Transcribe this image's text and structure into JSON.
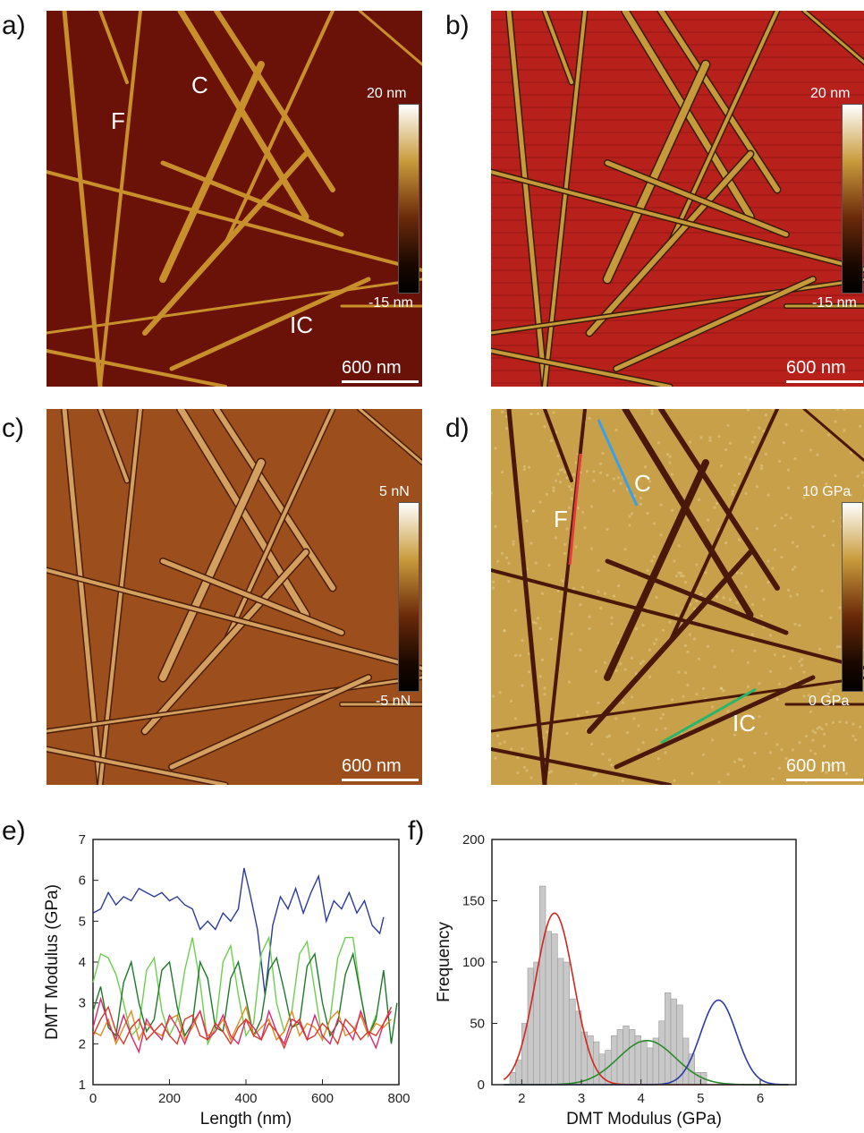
{
  "panels": {
    "a": {
      "letter": "a)",
      "scale": "600 nm",
      "cmax": "20 nm",
      "cmin": "-15 nm",
      "labels": {
        "F": "F",
        "C": "C",
        "IC": "IC"
      }
    },
    "b": {
      "letter": "b)",
      "scale": "600 nm",
      "cmax": "20 nm",
      "cmin": "-15 nm"
    },
    "c": {
      "letter": "c)",
      "scale": "600 nm",
      "cmax": "5 nN",
      "cmin": "-5 nN"
    },
    "d": {
      "letter": "d)",
      "scale": "600 nm",
      "cmax": "10 GPa",
      "cmin": "0 GPa",
      "labels": {
        "F": "F",
        "C": "C",
        "IC": "IC"
      }
    },
    "e": {
      "letter": "e)"
    },
    "f": {
      "letter": "f)"
    }
  },
  "colors": {
    "a_bg": "#6b1208",
    "a_fiber": "#c8902a",
    "b_bg": "#b8201c",
    "b_fiber": "#c49a3a",
    "c_bg": "#9c4e1c",
    "c_fiber": "#d4a060",
    "d_bg": "#c9a04a",
    "d_fiber": "#4a1808",
    "line_F": "#e33a3a",
    "line_C": "#3aa0e6",
    "line_IC": "#29b56a"
  },
  "chart_data": [
    {
      "type": "line",
      "xlabel": "Length (nm)",
      "ylabel": "DMT Modulus (GPa)",
      "xlim": [
        0,
        800
      ],
      "ylim": [
        1,
        7
      ],
      "xticks": [
        0,
        200,
        400,
        600,
        800
      ],
      "yticks": [
        1,
        2,
        3,
        4,
        5,
        6,
        7
      ],
      "series": [
        {
          "color": "#2b3a9e",
          "x": [
            0,
            20,
            40,
            60,
            80,
            100,
            120,
            140,
            160,
            180,
            200,
            220,
            240,
            260,
            280,
            300,
            320,
            340,
            360,
            380,
            395,
            410,
            430,
            450,
            470,
            490,
            510,
            530,
            550,
            570,
            590,
            610,
            630,
            650,
            670,
            690,
            710,
            730,
            750,
            760
          ],
          "y": [
            5.2,
            5.3,
            5.7,
            5.4,
            5.6,
            5.5,
            5.8,
            5.7,
            5.6,
            5.7,
            5.5,
            5.6,
            5.4,
            5.3,
            4.8,
            5.0,
            4.8,
            5.2,
            5.0,
            5.3,
            6.3,
            5.7,
            4.8,
            3.2,
            4.9,
            5.6,
            5.3,
            5.8,
            5.2,
            5.7,
            6.1,
            5.0,
            5.5,
            5.3,
            5.7,
            5.2,
            5.5,
            4.9,
            4.7,
            5.1
          ]
        },
        {
          "color": "#6ccf4c",
          "x": [
            0,
            20,
            40,
            60,
            80,
            100,
            120,
            140,
            160,
            180,
            200,
            220,
            240,
            260,
            280,
            300,
            320,
            340,
            360,
            380,
            400,
            420,
            440,
            460,
            480,
            500,
            520,
            540,
            560,
            580,
            600,
            620,
            640,
            660,
            680,
            700,
            720,
            740
          ],
          "y": [
            3.5,
            4.2,
            4.1,
            3.7,
            3.0,
            2.2,
            2.4,
            3.8,
            4.1,
            2.8,
            2.2,
            2.6,
            3.8,
            4.6,
            3.5,
            2.0,
            2.4,
            4.0,
            4.4,
            3.2,
            2.2,
            2.5,
            4.2,
            4.6,
            3.0,
            2.3,
            2.8,
            4.2,
            4.5,
            3.3,
            2.1,
            2.6,
            4.1,
            4.6,
            4.6,
            3.2,
            2.2,
            2.7
          ]
        },
        {
          "color": "#1e7a2a",
          "x": [
            0,
            20,
            40,
            60,
            80,
            100,
            120,
            140,
            160,
            180,
            200,
            220,
            240,
            260,
            280,
            300,
            320,
            340,
            360,
            380,
            400,
            420,
            440,
            460,
            480,
            500,
            520,
            540,
            560,
            580,
            600,
            620,
            640,
            660,
            680,
            700,
            720,
            740,
            760,
            780,
            795
          ],
          "y": [
            2.8,
            3.4,
            2.4,
            2.2,
            3.5,
            4.0,
            3.0,
            2.3,
            2.6,
            3.8,
            4.0,
            2.9,
            2.2,
            2.5,
            4.0,
            3.6,
            2.4,
            2.3,
            3.6,
            4.0,
            3.1,
            2.2,
            2.6,
            3.8,
            4.1,
            3.3,
            2.4,
            2.5,
            3.9,
            4.2,
            3.0,
            2.2,
            2.5,
            3.7,
            4.2,
            3.2,
            2.2,
            2.6,
            3.8,
            2.0,
            3.0
          ]
        },
        {
          "color": "#e08a1e",
          "x": [
            0,
            20,
            40,
            60,
            80,
            100,
            120,
            140,
            160,
            180,
            200,
            220,
            240,
            260,
            280,
            300,
            320,
            340,
            360,
            380,
            400,
            420,
            440,
            460,
            480,
            500,
            520,
            540,
            560,
            580,
            600,
            620,
            640,
            660,
            680,
            700,
            720,
            740,
            760,
            780
          ],
          "y": [
            2.3,
            2.2,
            2.6,
            2.0,
            2.4,
            2.8,
            2.1,
            2.5,
            2.3,
            2.2,
            2.6,
            2.7,
            2.1,
            2.4,
            2.8,
            2.2,
            2.3,
            2.6,
            2.1,
            2.5,
            2.9,
            2.2,
            2.4,
            2.6,
            2.1,
            2.3,
            2.8,
            2.2,
            2.5,
            2.4,
            2.1,
            2.6,
            2.8,
            2.2,
            2.3,
            2.7,
            2.2,
            2.5,
            2.4,
            2.6
          ]
        },
        {
          "color": "#d82a6e",
          "x": [
            0,
            20,
            40,
            60,
            80,
            100,
            120,
            140,
            160,
            180,
            200,
            220,
            240,
            260,
            280,
            300,
            320,
            340,
            360,
            380,
            400,
            420,
            440,
            460,
            480,
            500,
            520,
            540,
            560,
            580,
            600,
            620,
            640,
            660,
            680,
            700,
            720,
            740,
            760,
            780
          ],
          "y": [
            2.4,
            3.1,
            2.5,
            2.1,
            2.7,
            2.2,
            1.8,
            2.6,
            2.3,
            2.1,
            2.7,
            2.4,
            2.0,
            2.5,
            2.8,
            2.1,
            2.3,
            2.7,
            2.2,
            2.0,
            2.6,
            2.4,
            2.1,
            2.8,
            2.3,
            2.0,
            2.6,
            2.5,
            2.1,
            2.7,
            2.2,
            2.0,
            2.6,
            2.4,
            2.1,
            2.8,
            2.3,
            1.9,
            2.5,
            2.8
          ]
        },
        {
          "color": "#d83a2a",
          "x": [
            0,
            20,
            40,
            60,
            80,
            100,
            120,
            140,
            160,
            180,
            200,
            220,
            240,
            260,
            280,
            300,
            320,
            340,
            360,
            380,
            400,
            420,
            440,
            460,
            480,
            500,
            520,
            540,
            560,
            580,
            600,
            620,
            640,
            660,
            680,
            700,
            720,
            740,
            760,
            780
          ],
          "y": [
            2.2,
            2.6,
            2.9,
            2.3,
            2.0,
            2.4,
            2.6,
            2.1,
            2.3,
            2.5,
            2.2,
            2.0,
            2.6,
            2.7,
            2.2,
            2.1,
            2.5,
            2.3,
            2.0,
            2.4,
            2.6,
            2.2,
            2.1,
            2.5,
            2.3,
            1.9,
            2.4,
            2.6,
            2.1,
            2.2,
            2.5,
            2.3,
            2.0,
            2.6,
            2.4,
            2.1,
            2.3,
            2.2,
            2.5,
            2.9
          ]
        }
      ]
    },
    {
      "type": "bar",
      "xlabel": "DMT Modulus (GPa)",
      "ylabel": "Frequency",
      "xlim": [
        1.5,
        6.6
      ],
      "ylim": [
        0,
        200
      ],
      "xticks": [
        2,
        3,
        4,
        5,
        6
      ],
      "yticks": [
        0,
        50,
        100,
        150,
        200
      ],
      "bin_width": 0.1,
      "bin_start": 1.8,
      "values": [
        10,
        20,
        50,
        95,
        100,
        162,
        125,
        123,
        103,
        100,
        70,
        60,
        43,
        40,
        35,
        25,
        28,
        40,
        45,
        48,
        45,
        40,
        35,
        30,
        38,
        52,
        75,
        70,
        65,
        38,
        25,
        10,
        10
      ],
      "bar_color": "#c8c8c8",
      "fits": [
        {
          "color": "#d0271f",
          "amp": 140,
          "mu": 2.55,
          "sigma": 0.32
        },
        {
          "color": "#2a8a2a",
          "amp": 36,
          "mu": 4.1,
          "sigma": 0.48
        },
        {
          "color": "#2a3aa8",
          "amp": 69,
          "mu": 5.3,
          "sigma": 0.3
        }
      ]
    }
  ]
}
